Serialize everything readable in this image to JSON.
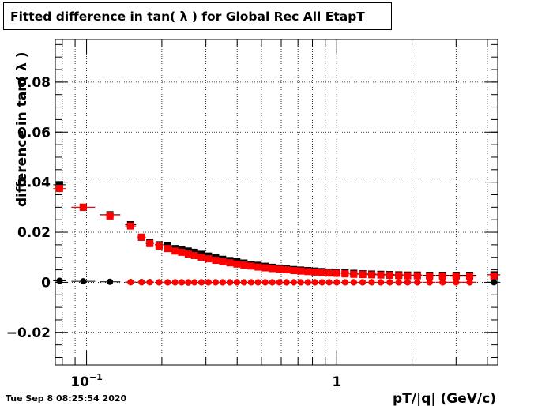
{
  "title": "Fitted difference in tan( λ ) for Global Rec All EtapT",
  "timestamp": "Tue Sep  8 08:25:54 2020",
  "chart_data": {
    "type": "scatter",
    "title": "Fitted difference in tan( λ ) for Global Rec All EtapT",
    "xlabel": "pT/|q| (GeV/c)",
    "ylabel": "difference in tan( λ )",
    "x_scale": "log",
    "xlim": [
      0.075,
      4.4
    ],
    "ylim": [
      -0.033,
      0.097
    ],
    "grid": true,
    "x_tick_labels": [
      {
        "value": 0.1,
        "text": "10⁻¹"
      },
      {
        "value": 1,
        "text": "1"
      }
    ],
    "y_ticks": [
      -0.02,
      0,
      0.02,
      0.04,
      0.06,
      0.08
    ],
    "y_tick_labels": [
      "−0.02",
      "0",
      "0.02",
      "0.04",
      "0.06",
      "0.08"
    ],
    "series": [
      {
        "color": "#000000",
        "marker": "square",
        "x": [
          0.078,
          0.097,
          0.124,
          0.15,
          0.166,
          0.179,
          0.195,
          0.211,
          0.226,
          0.24,
          0.255,
          0.27,
          0.288,
          0.307,
          0.328,
          0.35,
          0.374,
          0.399,
          0.426,
          0.455,
          0.485,
          0.518,
          0.553,
          0.59,
          0.63,
          0.673,
          0.718,
          0.767,
          0.818,
          0.874,
          0.933,
          1.0,
          1.08,
          1.17,
          1.27,
          1.38,
          1.5,
          1.63,
          1.77,
          1.92,
          2.1,
          2.35,
          2.65,
          3.0,
          3.4,
          4.25
        ],
        "y": [
          0.039,
          0.03,
          0.027,
          0.023,
          0.018,
          0.016,
          0.015,
          0.0145,
          0.0135,
          0.013,
          0.0125,
          0.012,
          0.0112,
          0.0105,
          0.0098,
          0.0092,
          0.0087,
          0.0082,
          0.0077,
          0.0072,
          0.0068,
          0.0064,
          0.006,
          0.0057,
          0.0054,
          0.0051,
          0.0049,
          0.0047,
          0.0045,
          0.0043,
          0.0041,
          0.004,
          0.0038,
          0.0036,
          0.0034,
          0.0033,
          0.0032,
          0.0031,
          0.003,
          0.0029,
          0.0029,
          0.0028,
          0.0028,
          0.0028,
          0.0028,
          0.003
        ]
      },
      {
        "color": "#ff0000",
        "marker": "square",
        "x": [
          0.078,
          0.097,
          0.124,
          0.15,
          0.166,
          0.179,
          0.195,
          0.211,
          0.226,
          0.24,
          0.255,
          0.27,
          0.288,
          0.307,
          0.328,
          0.35,
          0.374,
          0.399,
          0.426,
          0.455,
          0.485,
          0.518,
          0.553,
          0.59,
          0.63,
          0.673,
          0.718,
          0.767,
          0.818,
          0.874,
          0.933,
          1.0,
          1.08,
          1.17,
          1.27,
          1.38,
          1.5,
          1.63,
          1.77,
          1.92,
          2.1,
          2.35,
          2.65,
          3.0,
          3.4,
          4.25
        ],
        "y": [
          0.0375,
          0.03,
          0.0265,
          0.0225,
          0.018,
          0.0155,
          0.0145,
          0.0135,
          0.0125,
          0.012,
          0.0113,
          0.0107,
          0.01,
          0.0094,
          0.0088,
          0.0083,
          0.0078,
          0.0073,
          0.0069,
          0.0065,
          0.0061,
          0.0058,
          0.0055,
          0.0052,
          0.005,
          0.0047,
          0.0045,
          0.0043,
          0.0041,
          0.0039,
          0.0037,
          0.0036,
          0.0034,
          0.0032,
          0.0031,
          0.003,
          0.0029,
          0.0028,
          0.0027,
          0.0026,
          0.0026,
          0.0025,
          0.0025,
          0.0024,
          0.0024,
          0.0025
        ]
      },
      {
        "color": "#000000",
        "marker": "circle",
        "x": [
          0.078,
          0.097,
          0.124,
          0.15,
          0.166,
          0.179,
          0.195,
          0.211,
          0.226,
          0.24,
          0.255,
          0.27,
          0.288,
          0.307,
          0.328,
          0.35,
          0.374,
          0.399,
          0.426,
          0.455,
          0.485,
          0.518,
          0.553,
          0.59,
          0.63,
          0.673,
          0.718,
          0.767,
          0.818,
          0.874,
          0.933,
          1.0,
          1.08,
          1.17,
          1.27,
          1.38,
          1.5,
          1.63,
          1.77,
          1.92,
          2.1,
          2.35,
          2.65,
          3.0,
          3.4,
          4.25
        ],
        "y": [
          0.0006,
          0.0004,
          0.0002,
          0.0001,
          0.0001,
          0.0001,
          0.0,
          0.0,
          0.0,
          0.0,
          -0.0001,
          0.0,
          0.0,
          0.0,
          0.0,
          0.0,
          0.0,
          0.0,
          0.0,
          0.0,
          0.0,
          0.0,
          0.0,
          0.0,
          0.0,
          0.0,
          0.0,
          0.0,
          0.0,
          0.0,
          0.0,
          0.0,
          0.0,
          0.0,
          0.0,
          0.0,
          0.0,
          0.0,
          0.0,
          0.0,
          0.0,
          0.0,
          0.0,
          0.0,
          0.0,
          0.0
        ]
      },
      {
        "color": "#ff0000",
        "marker": "circle",
        "x": [
          0.15,
          0.166,
          0.179,
          0.195,
          0.211,
          0.226,
          0.24,
          0.255,
          0.27,
          0.288,
          0.307,
          0.328,
          0.35,
          0.374,
          0.399,
          0.426,
          0.455,
          0.485,
          0.518,
          0.553,
          0.59,
          0.63,
          0.673,
          0.718,
          0.767,
          0.818,
          0.874,
          0.933,
          1.0,
          1.08,
          1.17,
          1.27,
          1.38,
          1.5,
          1.63,
          1.77,
          1.92,
          2.1,
          2.35,
          2.65,
          3.0,
          3.4
        ],
        "y": [
          0.0,
          0.0,
          0.0,
          0.0,
          0.0,
          0.0,
          0.0,
          0.0,
          0.0,
          0.0,
          0.0,
          0.0,
          0.0,
          0.0,
          0.0,
          0.0,
          0.0,
          0.0,
          0.0,
          0.0,
          0.0,
          0.0,
          0.0,
          0.0,
          0.0,
          0.0,
          0.0,
          0.0,
          0.0,
          0.0,
          0.0,
          0.0,
          0.0,
          0.0,
          0.0,
          0.0,
          0.0,
          0.0,
          0.0,
          0.0,
          0.0,
          0.0
        ]
      }
    ]
  }
}
